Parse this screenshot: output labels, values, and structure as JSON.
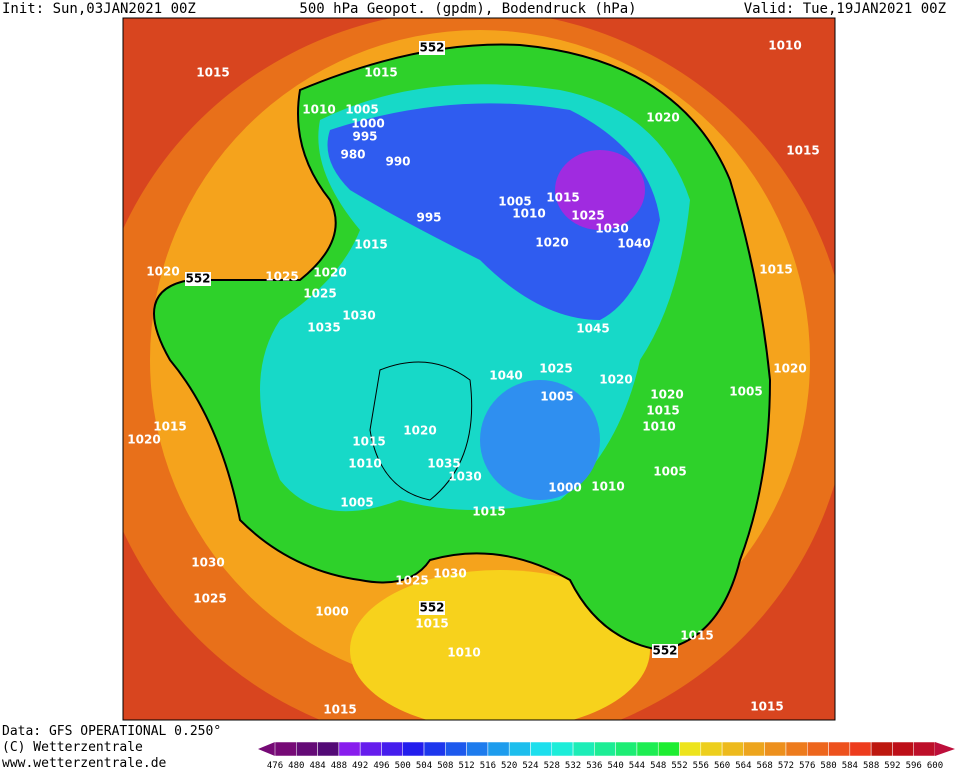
{
  "header": {
    "init": "Init: Sun,03JAN2021 00Z",
    "title": "500 hPa Geopot. (gpdm), Bodendruck (hPa)",
    "valid": "Valid: Tue,19JAN2021 00Z"
  },
  "footer": {
    "data": "Data: GFS OPERATIONAL 0.250°",
    "copyright": "(C) Wetterzentrale",
    "url": "www.wetterzentrale.de"
  },
  "colorbar": {
    "ticks": [
      476,
      480,
      484,
      488,
      492,
      496,
      500,
      504,
      508,
      512,
      516,
      520,
      524,
      528,
      532,
      536,
      540,
      544,
      548,
      552,
      556,
      560,
      564,
      568,
      572,
      576,
      580,
      584,
      588,
      592,
      596,
      600
    ]
  },
  "map": {
    "labels": [
      "552",
      "552",
      "552",
      "552",
      "1015",
      "1015",
      "1015",
      "1015",
      "1015",
      "1015",
      "1015",
      "1015",
      "1015",
      "1015",
      "1015",
      "1015",
      "1015",
      "1015",
      "1010",
      "1010",
      "1010",
      "1010",
      "1010",
      "1010",
      "1010",
      "1005",
      "1005",
      "1005",
      "1005",
      "1005",
      "1005",
      "1000",
      "1000",
      "1000",
      "995",
      "995",
      "990",
      "980",
      "1020",
      "1020",
      "1020",
      "1020",
      "1020",
      "1020",
      "1020",
      "1020",
      "1020",
      "1025",
      "1025",
      "1025",
      "1025",
      "1025",
      "1025",
      "1030",
      "1030",
      "1030",
      "1030",
      "1030",
      "1035",
      "1035",
      "1040",
      "1040",
      "1045"
    ]
  }
}
